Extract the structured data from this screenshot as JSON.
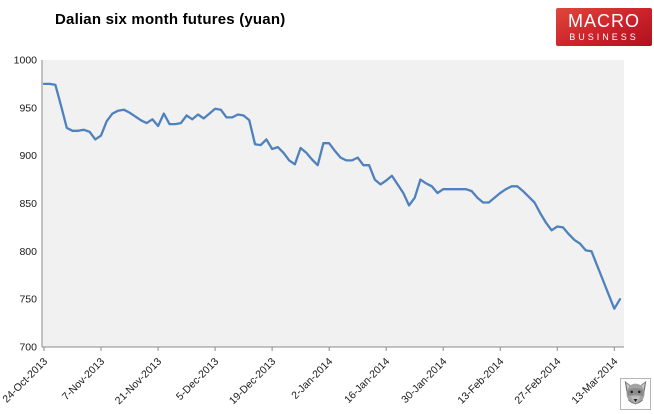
{
  "header": {
    "title": "Dalian six month futures (yuan)"
  },
  "logo": {
    "line1": "MACRO",
    "line2": "BUSINESS",
    "bg_top": "#e0473a",
    "bg_bottom": "#ae121e",
    "text_color": "#ffffff"
  },
  "wolf_logo": {
    "name": "wolf-head-emblem"
  },
  "chart_data": {
    "type": "line",
    "title": "Dalian six month futures (yuan)",
    "xlabel": "",
    "ylabel": "",
    "ylim": [
      700,
      1000
    ],
    "y_ticks": [
      700,
      750,
      800,
      850,
      900,
      950,
      1000
    ],
    "x_tick_labels": [
      "24-Oct-2013",
      "7-Nov-2013",
      "21-Nov-2013",
      "5-Dec-2013",
      "19-Dec-2013",
      "2-Jan-2014",
      "16-Jan-2014",
      "30-Jan-2014",
      "13-Feb-2014",
      "27-Feb-2014",
      "13-Mar-2014"
    ],
    "x_tick_indices": [
      0,
      10,
      20,
      30,
      40,
      50,
      60,
      70,
      80,
      90,
      100
    ],
    "grid": "off",
    "legend": "none",
    "plot_bg": "#f1f1f1",
    "axis_color": "#8a8a8a",
    "label_color": "#1a1a1a",
    "series": [
      {
        "name": "Dalian six month futures (yuan)",
        "color": "#4f81bd",
        "width": 2.3,
        "values": [
          975,
          975,
          974,
          952,
          929,
          926,
          926,
          927,
          925,
          917,
          921,
          936,
          944,
          947,
          948,
          945,
          941,
          937,
          934,
          938,
          931,
          944,
          933,
          933,
          934,
          942,
          938,
          943,
          939,
          944,
          949,
          948,
          940,
          940,
          943,
          942,
          937,
          912,
          911,
          917,
          907,
          909,
          903,
          895,
          891,
          908,
          903,
          896,
          890,
          913,
          913,
          905,
          898,
          895,
          895,
          898,
          890,
          890,
          875,
          870,
          874,
          879,
          870,
          861,
          848,
          856,
          875,
          871,
          868,
          861,
          865,
          865,
          865,
          865,
          865,
          863,
          856,
          851,
          851,
          856,
          861,
          865,
          868,
          868,
          863,
          857,
          851,
          840,
          830,
          822,
          826,
          825,
          818,
          812,
          808,
          801,
          800,
          785,
          770,
          755,
          740,
          750
        ]
      }
    ]
  }
}
